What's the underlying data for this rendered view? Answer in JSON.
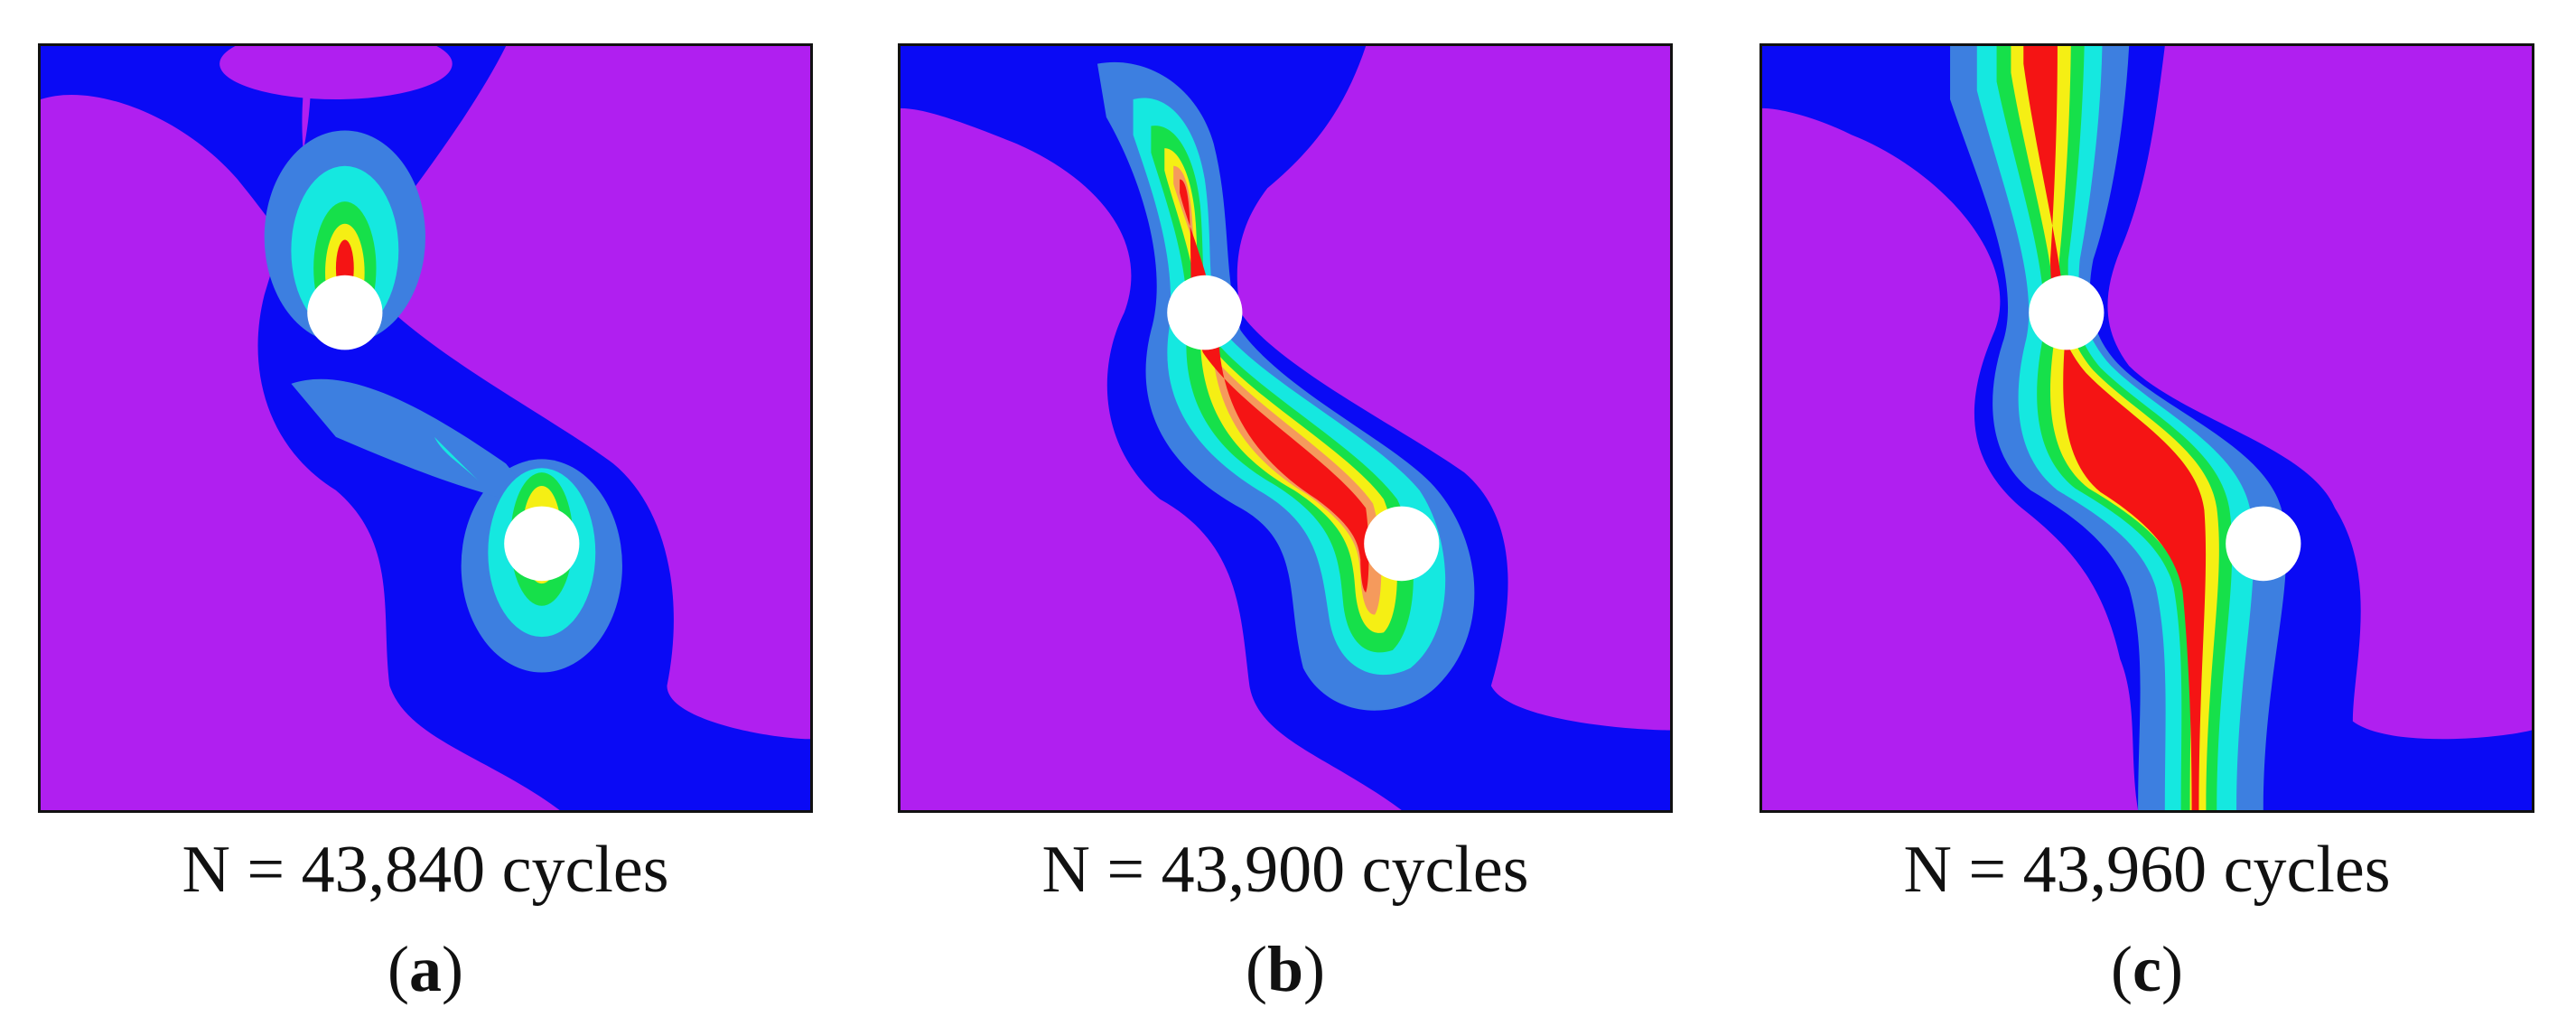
{
  "colors": {
    "background": "#b01ff0",
    "level_1": "#0a0af5",
    "level_2": "#3d7fe0",
    "level_3": "#15e8e0",
    "level_4": "#16e04a",
    "level_5": "#f5ef14",
    "level_6": "#f59a5c",
    "level_7": "#f51414",
    "hole": "#ffffff"
  },
  "panels": [
    {
      "cycles": "N = 43,840 cycles",
      "open": "(",
      "letter": "a",
      "close": ")"
    },
    {
      "cycles": "N = 43,900 cycles",
      "open": "(",
      "letter": "b",
      "close": ")"
    },
    {
      "cycles": "N = 43,960 cycles",
      "open": "(",
      "letter": "c",
      "close": ")"
    }
  ]
}
